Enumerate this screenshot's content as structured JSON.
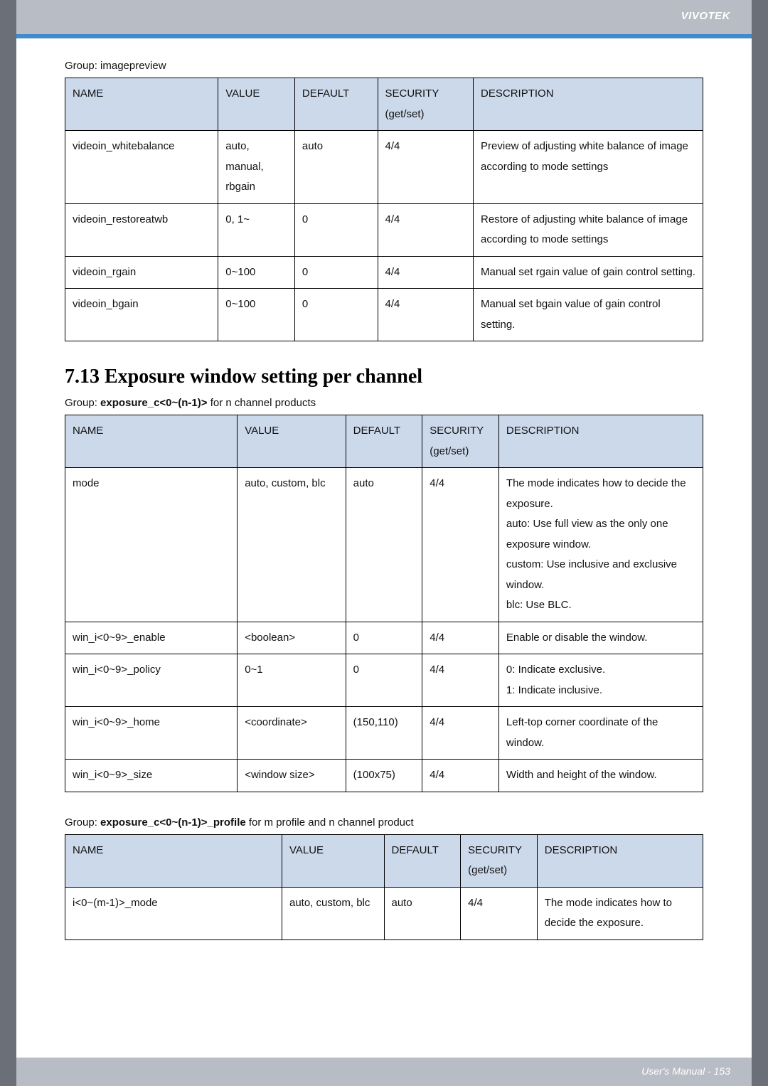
{
  "brand": "VIVOTEK",
  "footer": "User's Manual - 153",
  "t1": {
    "group_label": "Group: imagepreview",
    "columns": [
      "NAME",
      "VALUE",
      "DEFAULT",
      "SECURITY (get/set)",
      "DESCRIPTION"
    ],
    "col_widths": [
      "24%",
      "12%",
      "13%",
      "15%",
      "36%"
    ],
    "rows": [
      {
        "name": "videoin_whitebalance",
        "value": "auto, manual, rbgain",
        "default": "auto",
        "security": "4/4",
        "desc": "Preview of adjusting white balance of image according to mode settings"
      },
      {
        "name": "videoin_restoreatwb",
        "value": "0, 1~",
        "default": "0",
        "security": "4/4",
        "desc": "Restore of adjusting white balance of image according to mode settings"
      },
      {
        "name": "videoin_rgain",
        "value": "0~100",
        "default": "0",
        "security": "4/4",
        "desc": "Manual set rgain value of gain control setting."
      },
      {
        "name": "videoin_bgain",
        "value": "0~100",
        "default": "0",
        "security": "4/4",
        "desc": "Manual set bgain value of gain control setting."
      }
    ]
  },
  "section_heading": "7.13 Exposure window setting per channel",
  "t2": {
    "group_prefix": "Group: ",
    "group_bold": "exposure_c<0~(n-1)>",
    "group_suffix": " for n channel products",
    "columns": [
      "NAME",
      "VALUE",
      "DEFAULT",
      "SECURITY (get/set)",
      "DESCRIPTION"
    ],
    "col_widths": [
      "27%",
      "17%",
      "12%",
      "12%",
      "32%"
    ],
    "rows": [
      {
        "name": "mode",
        "value": "auto, custom, blc",
        "default": "auto",
        "security": "4/4",
        "desc": "The mode indicates how to decide the exposure.\nauto: Use full view as the only one exposure window.\ncustom: Use inclusive and exclusive window.\nblc: Use BLC."
      },
      {
        "name": "win_i<0~9>_enable",
        "value": "<boolean>",
        "default": "0",
        "security": "4/4",
        "desc": "Enable or disable the window."
      },
      {
        "name": "win_i<0~9>_policy",
        "value": "0~1",
        "default": "0",
        "security": "4/4",
        "desc": "0: Indicate exclusive.\n1: Indicate inclusive."
      },
      {
        "name": "win_i<0~9>_home",
        "value": "<coordinate>",
        "default": "(150,110)",
        "security": "4/4",
        "desc": "Left-top corner coordinate of the window."
      },
      {
        "name": "win_i<0~9>_size",
        "value": "<window size>",
        "default": "(100x75)",
        "security": "4/4",
        "desc": "Width and height of the window."
      }
    ]
  },
  "t3": {
    "group_prefix": "Group: ",
    "group_bold": "exposure_c<0~(n-1)>_profile",
    "group_suffix": " for m profile and n channel product",
    "columns": [
      "NAME",
      "VALUE",
      "DEFAULT",
      "SECURITY (get/set)",
      "DESCRIPTION"
    ],
    "col_widths": [
      "34%",
      "16%",
      "12%",
      "12%",
      "26%"
    ],
    "rows": [
      {
        "name": "i<0~(m-1)>_mode",
        "value": "auto, custom, blc",
        "default": "auto",
        "security": "4/4",
        "desc": "The mode indicates how to decide the exposure."
      }
    ]
  }
}
